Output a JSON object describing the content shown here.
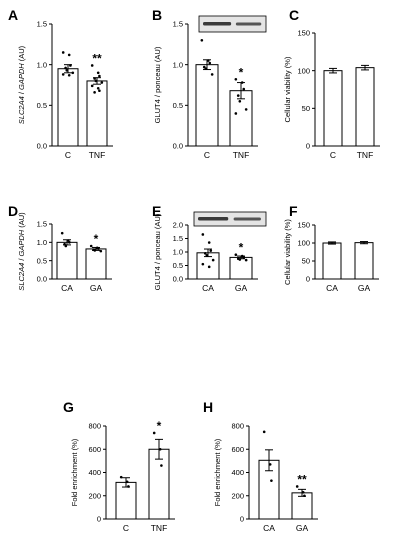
{
  "chart_data": [
    {
      "panel": "A",
      "type": "bar",
      "ylabel": [
        {
          "text": "SLC2A4",
          "italic": true
        },
        {
          "text": " / ",
          "italic": false
        },
        {
          "text": "GAPDH",
          "italic": true
        },
        {
          "text": " (AU)",
          "italic": false
        }
      ],
      "categories": [
        "C",
        "TNF"
      ],
      "values": [
        0.95,
        0.8
      ],
      "errors": [
        0.05,
        0.04
      ],
      "points": [
        [
          1.15,
          1.12,
          0.99,
          0.96,
          0.93,
          0.9,
          0.88,
          0.87
        ],
        [
          0.99,
          0.9,
          0.86,
          0.83,
          0.8,
          0.78,
          0.74,
          0.71,
          0.68,
          0.66
        ]
      ],
      "significance": [
        "",
        "**"
      ],
      "ylim": [
        0,
        1.5
      ],
      "yticks": [
        0.0,
        0.5,
        1.0,
        1.5
      ],
      "tick_labels": [
        "0.0",
        "0.5",
        "1.0",
        "1.5"
      ]
    },
    {
      "panel": "B",
      "type": "bar",
      "ylabel": [
        {
          "text": "GLUT4 / ponceau (AU)",
          "italic": false
        }
      ],
      "categories": [
        "C",
        "TNF"
      ],
      "values": [
        1.0,
        0.68
      ],
      "errors": [
        0.06,
        0.1
      ],
      "points": [
        [
          1.3,
          1.05,
          1.02,
          0.97,
          0.95,
          0.88
        ],
        [
          0.82,
          0.78,
          0.7,
          0.62,
          0.55,
          0.45,
          0.4
        ]
      ],
      "significance": [
        "",
        "*"
      ],
      "blot": true,
      "ylim": [
        0,
        1.5
      ],
      "yticks": [
        0.0,
        0.5,
        1.0,
        1.5
      ],
      "tick_labels": [
        "0.0",
        "0.5",
        "1.0",
        "1.5"
      ]
    },
    {
      "panel": "C",
      "type": "bar",
      "ylabel": [
        {
          "text": "Cellular viability (%)",
          "italic": false
        }
      ],
      "categories": [
        "C",
        "TNF"
      ],
      "values": [
        100,
        104
      ],
      "errors": [
        3,
        3
      ],
      "points": [
        [],
        []
      ],
      "significance": [
        "",
        ""
      ],
      "ylim": [
        0,
        150
      ],
      "yticks": [
        0,
        50,
        100,
        150
      ],
      "tick_labels": [
        "0",
        "50",
        "100",
        "150"
      ]
    },
    {
      "panel": "D",
      "type": "bar",
      "ylabel": [
        {
          "text": "SLC2A4",
          "italic": true
        },
        {
          "text": " / ",
          "italic": false
        },
        {
          "text": "GAPDH",
          "italic": true
        },
        {
          "text": " (AU)",
          "italic": false
        }
      ],
      "categories": [
        "CA",
        "GA"
      ],
      "values": [
        1.0,
        0.82
      ],
      "errors": [
        0.07,
        0.04
      ],
      "points": [
        [
          1.25,
          1.05,
          1.0,
          0.95,
          0.9
        ],
        [
          0.9,
          0.85,
          0.83,
          0.8,
          0.78,
          0.76
        ]
      ],
      "significance": [
        "",
        "*"
      ],
      "ylim": [
        0,
        1.5
      ],
      "yticks": [
        0.0,
        0.5,
        1.0,
        1.5
      ],
      "tick_labels": [
        "0.0",
        "0.5",
        "1.0",
        "1.5"
      ]
    },
    {
      "panel": "E",
      "type": "bar",
      "ylabel": [
        {
          "text": "GLUT4 / ponceau (AU)",
          "italic": false
        }
      ],
      "categories": [
        "CA",
        "GA"
      ],
      "values": [
        0.97,
        0.8
      ],
      "errors": [
        0.14,
        0.05
      ],
      "points": [
        [
          1.65,
          1.35,
          1.05,
          0.95,
          0.88,
          0.7,
          0.55,
          0.45
        ],
        [
          0.9,
          0.85,
          0.8,
          0.75,
          0.72,
          0.7
        ]
      ],
      "significance": [
        "",
        "*"
      ],
      "blot": true,
      "ylim": [
        0,
        2.0
      ],
      "yticks": [
        0.0,
        0.5,
        1.0,
        1.5,
        2.0
      ],
      "tick_labels": [
        "0.0",
        "0.5",
        "1.0",
        "1.5",
        "2.0"
      ]
    },
    {
      "panel": "F",
      "type": "bar",
      "ylabel": [
        {
          "text": "Cellular viability (%)",
          "italic": false
        }
      ],
      "categories": [
        "CA",
        "GA"
      ],
      "values": [
        100,
        101
      ],
      "errors": [
        3,
        3
      ],
      "points": [
        [],
        []
      ],
      "significance": [
        "",
        ""
      ],
      "ylim": [
        0,
        150
      ],
      "yticks": [
        0,
        50,
        100,
        150
      ],
      "tick_labels": [
        "0",
        "50",
        "100",
        "150"
      ]
    },
    {
      "panel": "G",
      "type": "bar",
      "ylabel": [
        {
          "text": "Fold enrichment (%)",
          "italic": false
        }
      ],
      "categories": [
        "C",
        "TNF"
      ],
      "values": [
        315,
        600
      ],
      "errors": [
        40,
        85
      ],
      "points": [
        [
          360,
          320,
          280
        ],
        [
          740,
          600,
          460
        ]
      ],
      "significance": [
        "",
        "*"
      ],
      "ylim": [
        0,
        800
      ],
      "yticks": [
        0,
        200,
        400,
        600,
        800
      ],
      "tick_labels": [
        "0",
        "200",
        "400",
        "600",
        "800"
      ]
    },
    {
      "panel": "H",
      "type": "bar",
      "ylabel": [
        {
          "text": "Fold enrichment (%)",
          "italic": false
        }
      ],
      "categories": [
        "CA",
        "GA"
      ],
      "values": [
        505,
        225
      ],
      "errors": [
        90,
        30
      ],
      "points": [
        [
          750,
          470,
          330
        ],
        [
          280,
          230,
          200
        ]
      ],
      "significance": [
        "",
        "**"
      ],
      "ylim": [
        0,
        800
      ],
      "yticks": [
        0,
        200,
        400,
        600,
        800
      ],
      "tick_labels": [
        "0",
        "200",
        "400",
        "600",
        "800"
      ]
    }
  ]
}
